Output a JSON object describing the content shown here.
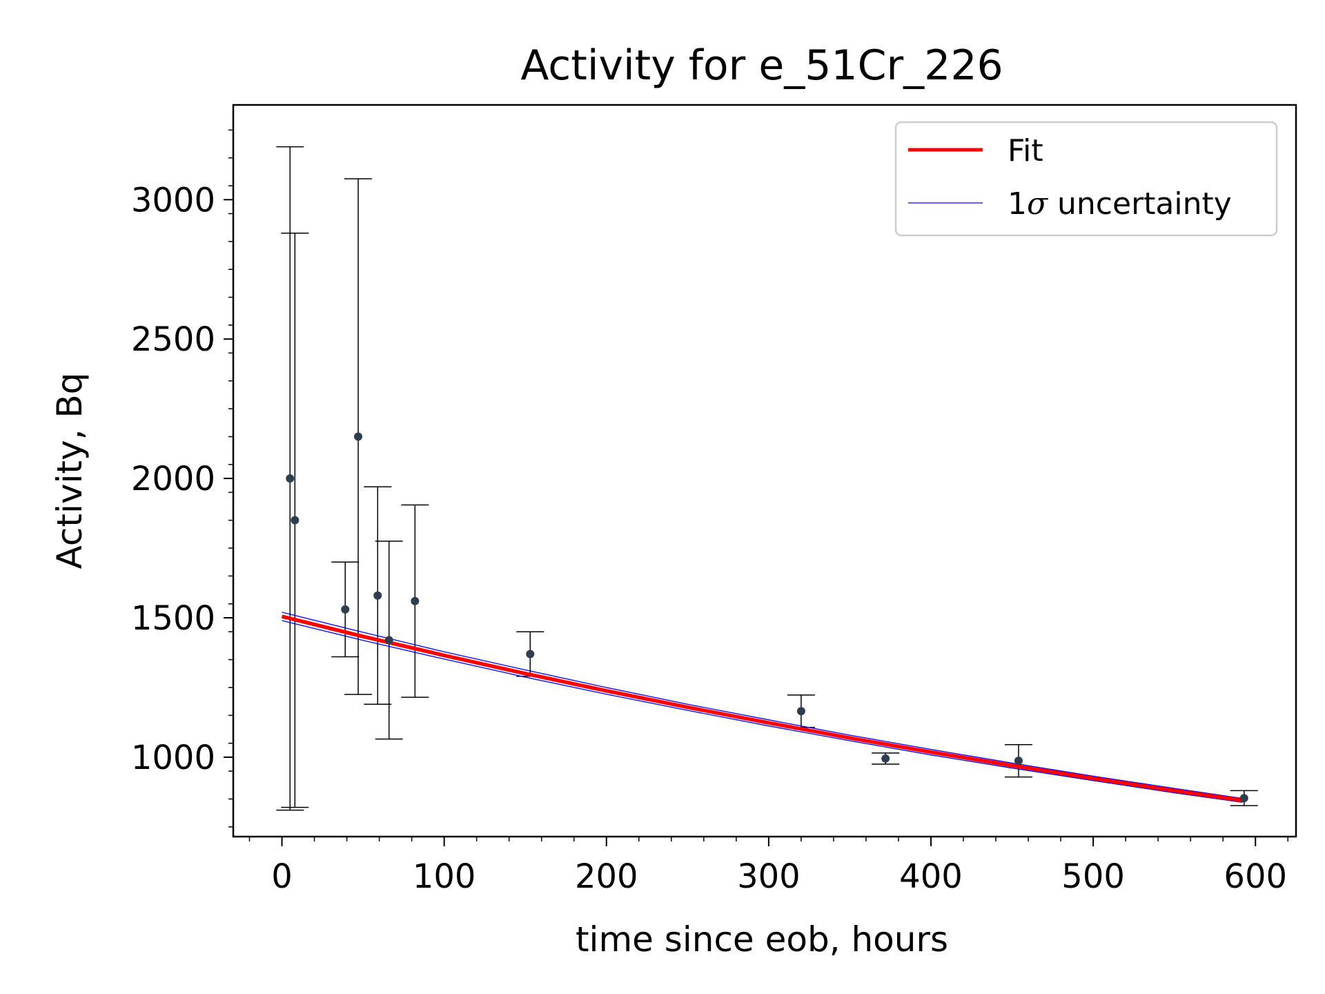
{
  "chart_data": {
    "type": "scatter",
    "title": "Activity for e_51Cr_226",
    "xlabel": "time since eob, hours",
    "ylabel": "Activity, Bq",
    "xlim": [
      -30,
      625
    ],
    "ylim": [
      715,
      3340
    ],
    "xticks": [
      0,
      100,
      200,
      300,
      400,
      500,
      600
    ],
    "yticks": [
      1000,
      1500,
      2000,
      2500,
      3000
    ],
    "grid": false,
    "legend_position": "upper right",
    "legend": {
      "fit_label": "Fit",
      "uncertainty_prefix": "1",
      "uncertainty_symbol": "σ",
      "uncertainty_suffix": " uncertainty"
    },
    "colors": {
      "fit": "#ff0000",
      "uncertainty": "#0000ff",
      "points": "#2c3e50",
      "errorbars": "#000000"
    },
    "points": [
      {
        "x": 5,
        "y": 2000,
        "yerr_low": 1190,
        "yerr_high": 1190
      },
      {
        "x": 8,
        "y": 1850,
        "yerr_low": 1030,
        "yerr_high": 1030
      },
      {
        "x": 39,
        "y": 1530,
        "yerr_low": 170,
        "yerr_high": 170
      },
      {
        "x": 47,
        "y": 2150,
        "yerr_low": 925,
        "yerr_high": 925
      },
      {
        "x": 59,
        "y": 1580,
        "yerr_low": 390,
        "yerr_high": 390
      },
      {
        "x": 66,
        "y": 1420,
        "yerr_low": 355,
        "yerr_high": 355
      },
      {
        "x": 82,
        "y": 1560,
        "yerr_low": 345,
        "yerr_high": 345
      },
      {
        "x": 153,
        "y": 1370,
        "yerr_low": 80,
        "yerr_high": 80
      },
      {
        "x": 320,
        "y": 1165,
        "yerr_low": 58,
        "yerr_high": 58
      },
      {
        "x": 372,
        "y": 995,
        "yerr_low": 20,
        "yerr_high": 20
      },
      {
        "x": 454,
        "y": 987,
        "yerr_low": 58,
        "yerr_high": 58
      },
      {
        "x": 593,
        "y": 853,
        "yerr_low": 27,
        "yerr_high": 27
      }
    ],
    "fit": {
      "x": [
        0,
        50,
        100,
        150,
        200,
        250,
        300,
        350,
        400,
        450,
        500,
        550,
        592
      ],
      "y": [
        1505,
        1433,
        1365,
        1300,
        1238,
        1179,
        1123,
        1069,
        1018,
        970,
        924,
        880,
        845
      ],
      "y_upper": [
        1520,
        1448,
        1378,
        1313,
        1250,
        1190,
        1134,
        1079,
        1028,
        979,
        932,
        888,
        852
      ],
      "y_lower": [
        1490,
        1419,
        1352,
        1287,
        1226,
        1168,
        1112,
        1059,
        1008,
        961,
        916,
        872,
        838
      ]
    }
  }
}
